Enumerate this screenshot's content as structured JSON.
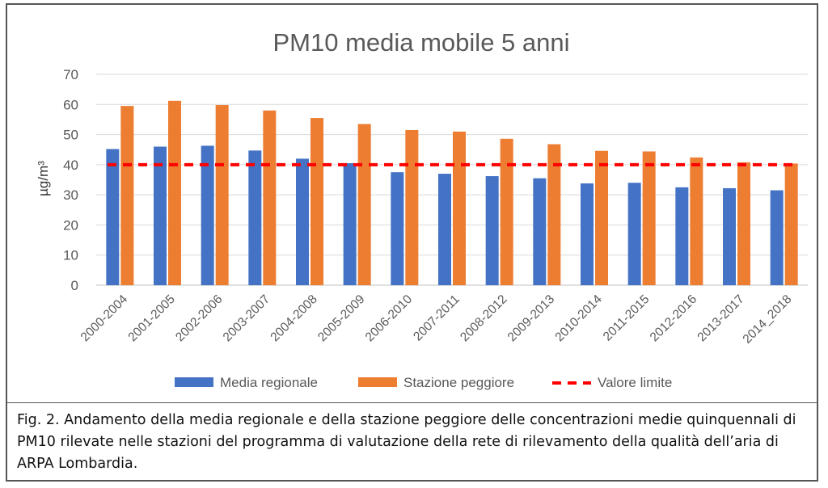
{
  "chart_data": {
    "type": "bar",
    "title": "PM10 media mobile 5 anni",
    "ylabel": "µg/m³",
    "ylim": [
      0,
      70
    ],
    "yticks": [
      0,
      10,
      20,
      30,
      40,
      50,
      60,
      70
    ],
    "grid": true,
    "legend_position": "bottom",
    "categories": [
      "2000-2004",
      "2001-2005",
      "2002-2006",
      "2003-2007",
      "2004-2008",
      "2005-2009",
      "2006-2010",
      "2007-2011",
      "2008-2012",
      "2009-2013",
      "2010-2014",
      "2011-2015",
      "2012-2016",
      "2013-2017",
      "2014_2018"
    ],
    "series": [
      {
        "name": "Media regionale",
        "color": "#4472C4",
        "values": [
          45.2,
          46.0,
          46.3,
          44.7,
          42.0,
          40.5,
          37.5,
          37.0,
          36.2,
          35.5,
          33.8,
          34.0,
          32.5,
          32.2,
          31.5
        ]
      },
      {
        "name": "Stazione peggiore",
        "color": "#ED7D31",
        "values": [
          59.5,
          61.2,
          59.8,
          58.0,
          55.5,
          53.5,
          51.5,
          51.0,
          48.6,
          46.8,
          44.6,
          44.4,
          42.4,
          40.8,
          40.4
        ]
      }
    ],
    "reference_line": {
      "name": "Valore limite",
      "value": 40,
      "color": "#FF0000"
    }
  },
  "caption": "Fig. 2. Andamento della media regionale e della stazione peggiore delle concentrazioni medie quinquennali di PM10 rilevate nelle stazioni del programma di valutazione della rete di rilevamento della qualità dell’aria di ARPA Lombardia."
}
